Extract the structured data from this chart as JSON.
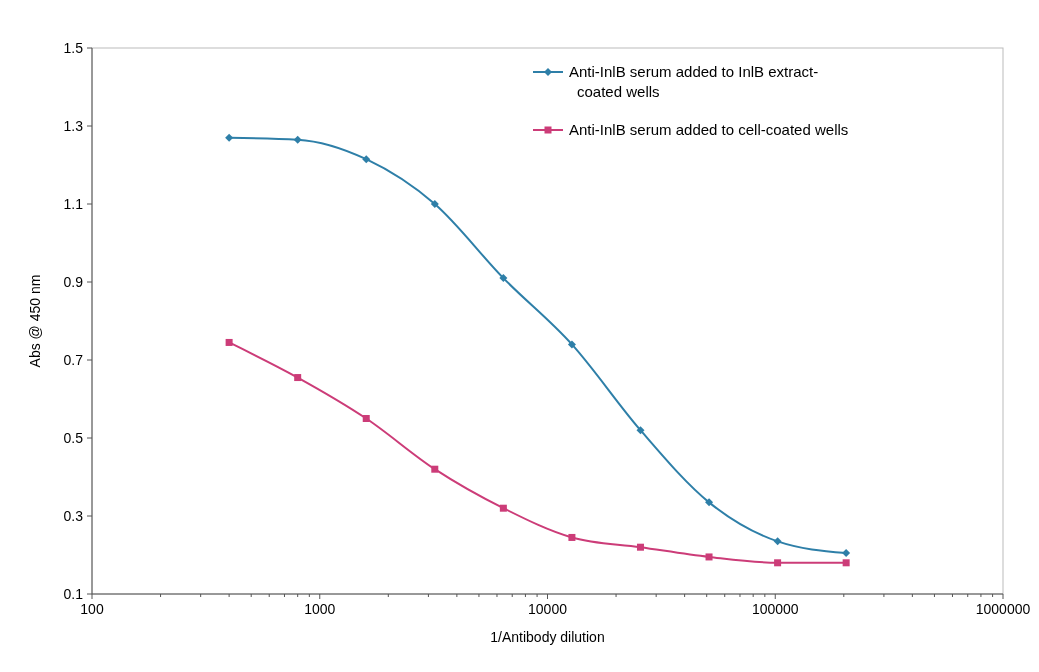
{
  "chart_data": {
    "type": "line",
    "xlabel": "1/Antibody dilution",
    "ylabel": "Abs @ 450 nm",
    "log": "x",
    "x": [
      400,
      800,
      1600,
      3200,
      6400,
      12800,
      25600,
      51200,
      102400,
      204800
    ],
    "series": [
      {
        "name": "Anti-InlB serum added to InlB extract-coated wells",
        "color": "#2e7fa8",
        "marker": "diamond",
        "values": [
          1.27,
          1.265,
          1.215,
          1.1,
          0.91,
          0.74,
          0.52,
          0.335,
          0.235,
          0.205
        ]
      },
      {
        "name": "Anti-InlB serum added to cell-coated wells",
        "color": "#cc3c78",
        "marker": "square",
        "values": [
          0.745,
          0.655,
          0.55,
          0.42,
          0.32,
          0.245,
          0.22,
          0.195,
          0.18,
          0.18
        ]
      }
    ],
    "xlim": [
      100,
      1000000
    ],
    "xticks": [
      100,
      {
        "value": 200,
        "label": null
      },
      {
        "value": 300,
        "label": null
      },
      {
        "value": 400,
        "label": null
      },
      {
        "value": 500,
        "label": null
      },
      {
        "value": 600,
        "label": null
      },
      {
        "value": 700,
        "label": null
      },
      {
        "value": 800,
        "label": null
      },
      {
        "value": 900,
        "label": null
      },
      1000,
      {
        "value": 2000,
        "label": null
      },
      {
        "value": 3000,
        "label": null
      },
      {
        "value": 4000,
        "label": null
      },
      {
        "value": 5000,
        "label": null
      },
      {
        "value": 6000,
        "label": null
      },
      {
        "value": 7000,
        "label": null
      },
      {
        "value": 8000,
        "label": null
      },
      {
        "value": 9000,
        "label": null
      },
      10000,
      {
        "value": 20000,
        "label": null
      },
      {
        "value": 30000,
        "label": null
      },
      {
        "value": 40000,
        "label": null
      },
      {
        "value": 50000,
        "label": null
      },
      {
        "value": 60000,
        "label": null
      },
      {
        "value": 70000,
        "label": null
      },
      {
        "value": 80000,
        "label": null
      },
      {
        "value": 90000,
        "label": null
      },
      100000,
      {
        "value": 200000,
        "label": null
      },
      {
        "value": 300000,
        "label": null
      },
      {
        "value": 400000,
        "label": null
      },
      {
        "value": 500000,
        "label": null
      },
      {
        "value": 600000,
        "label": null
      },
      {
        "value": 700000,
        "label": null
      },
      {
        "value": 800000,
        "label": null
      },
      {
        "value": 900000,
        "label": null
      },
      1000000
    ],
    "ylim": [
      0.1,
      1.5
    ],
    "yticks": [
      0.1,
      0.3,
      0.5,
      0.7,
      0.9,
      1.1,
      1.3,
      1.5
    ],
    "grid": false,
    "legend": "top right",
    "line_style": "solid"
  }
}
